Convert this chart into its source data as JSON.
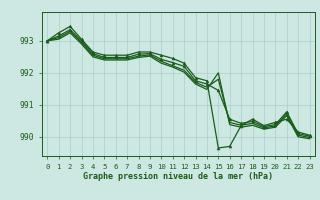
{
  "background_color": "#cde8e3",
  "grid_color": "#b0d4ce",
  "line_color": "#1a5c1a",
  "title": "Graphe pression niveau de la mer (hPa)",
  "xlim": [
    -0.5,
    23.5
  ],
  "ylim": [
    989.4,
    993.9
  ],
  "yticks": [
    990,
    991,
    992,
    993
  ],
  "xticks": [
    0,
    1,
    2,
    3,
    4,
    5,
    6,
    7,
    8,
    9,
    10,
    11,
    12,
    13,
    14,
    15,
    16,
    17,
    18,
    19,
    20,
    21,
    22,
    23
  ],
  "series": [
    {
      "x": [
        0,
        1,
        2,
        3,
        4,
        5,
        6,
        7,
        8,
        9,
        10,
        11,
        12,
        13,
        14,
        15,
        16,
        17,
        18,
        19,
        20,
        21,
        22,
        23
      ],
      "y": [
        993.0,
        993.25,
        993.45,
        993.05,
        992.65,
        992.55,
        992.55,
        992.55,
        992.65,
        992.65,
        992.55,
        992.45,
        992.3,
        991.85,
        991.75,
        989.65,
        989.7,
        990.35,
        990.55,
        990.35,
        990.45,
        990.55,
        990.15,
        990.05
      ],
      "marker": true
    },
    {
      "x": [
        0,
        1,
        2,
        3,
        4,
        5,
        6,
        7,
        8,
        9,
        10,
        11,
        12,
        13,
        14,
        15,
        16,
        17,
        18,
        19,
        20,
        21,
        22,
        23
      ],
      "y": [
        993.0,
        993.15,
        993.35,
        993.0,
        992.6,
        992.48,
        992.48,
        992.48,
        992.58,
        992.6,
        992.42,
        992.32,
        992.2,
        991.75,
        991.65,
        991.45,
        990.55,
        990.42,
        990.48,
        990.32,
        990.38,
        990.78,
        990.1,
        990.02
      ],
      "marker": true
    },
    {
      "x": [
        0,
        1,
        2,
        3,
        4,
        5,
        6,
        7,
        8,
        9,
        10,
        11,
        12,
        13,
        14,
        15,
        16,
        17,
        18,
        19,
        20,
        21,
        22,
        23
      ],
      "y": [
        993.0,
        993.1,
        993.3,
        992.95,
        992.55,
        992.44,
        992.44,
        992.44,
        992.52,
        992.56,
        992.36,
        992.22,
        992.08,
        991.7,
        991.55,
        991.8,
        990.45,
        990.36,
        990.42,
        990.28,
        990.34,
        990.72,
        990.05,
        989.98
      ],
      "marker": false
    },
    {
      "x": [
        0,
        1,
        2,
        3,
        4,
        5,
        6,
        7,
        8,
        9,
        10,
        11,
        12,
        13,
        14,
        15,
        16,
        17,
        18,
        19,
        20,
        21,
        22,
        23
      ],
      "y": [
        993.0,
        993.05,
        993.25,
        992.9,
        992.5,
        992.4,
        992.4,
        992.4,
        992.48,
        992.52,
        992.3,
        992.18,
        992.02,
        991.65,
        991.48,
        992.0,
        990.38,
        990.3,
        990.36,
        990.24,
        990.3,
        990.66,
        990.0,
        989.94
      ],
      "marker": false
    }
  ]
}
